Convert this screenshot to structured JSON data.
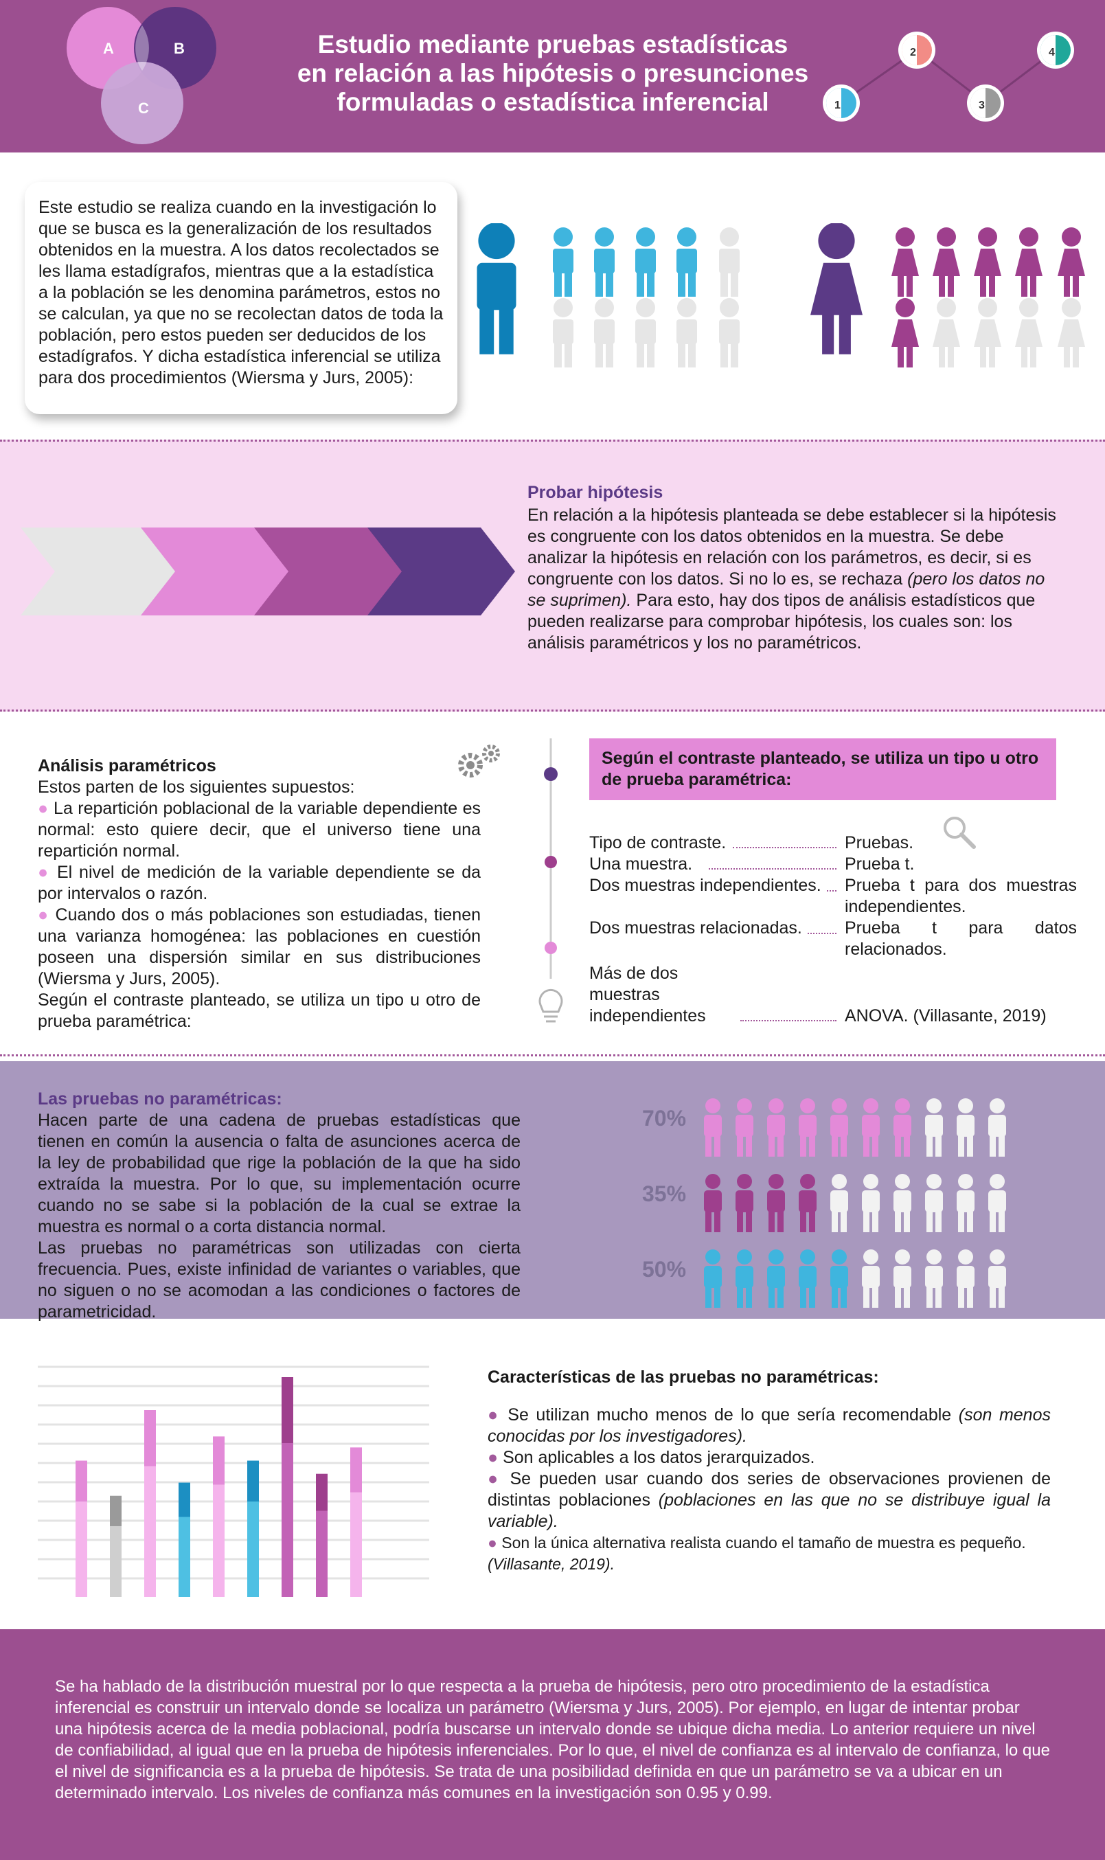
{
  "header": {
    "title_line1": "Estudio mediante pruebas estadísticas",
    "title_line2": "en relación a las hipótesis o presunciones",
    "title_line3": "formuladas o estadística inferencial",
    "venn_labels": [
      "A",
      "B",
      "C"
    ],
    "step_numbers": [
      "1",
      "2",
      "3",
      "4"
    ]
  },
  "intro": {
    "text": "Este estudio se realiza cuando en la investigación lo que se busca es la generalización de los resultados obtenidos en la muestra. A los datos recolectados se les llama estadígrafos, mientras que a la estadística a la población se les denomina parámetros, estos no se calculan, ya que no se recolectan datos de toda la población, pero estos pueden ser deducidos de los estadígrafos. Y dicha estadística inferencial se utiliza para dos procedimientos (Wiersma y Jurs, 2005):"
  },
  "probar": {
    "title": "Probar hipótesis",
    "text_a": "En relación a la hipótesis planteada se debe establecer si la hipótesis es congruente con los datos obtenidos en la muestra. Se debe analizar la hipótesis en relación con los parámetros, es decir, si es congruente con los datos. Si no lo es, se rechaza ",
    "text_italic": "(pero los datos no se suprimen).",
    "text_b": " Para esto, hay dos tipos de análisis estadísticos que pueden realizarse para comprobar hipótesis, los cuales son: los análisis paramétricos y los no paramétricos."
  },
  "parametricos": {
    "title": "Análisis paramétricos",
    "intro": "Estos parten de los siguientes supuestos:",
    "bullets": [
      "La repartición poblacional de la variable dependiente es normal: esto quiere decir, que el universo tiene una repartición normal.",
      "El nivel de medición de la variable dependiente se da por intervalos o razón.",
      "Cuando dos o más poblaciones son estudiadas, tienen una varianza homogénea: las poblaciones en cuestión poseen una dispersión similar en sus distribuciones (Wiersma y Jurs, 2005)."
    ],
    "closing": "Según el contraste planteado, se utiliza un tipo u otro de prueba paramétrica:"
  },
  "contraste": {
    "heading": "Según el contraste planteado, se utiliza un tipo u otro de prueba paramétrica:",
    "col1_header": "Tipo de contraste.",
    "col2_header": "Pruebas.",
    "rows": [
      {
        "tipo": "Una muestra.",
        "prueba": "Prueba t."
      },
      {
        "tipo": "Dos muestras independientes.",
        "prueba": "Prueba t para dos muestras independientes."
      },
      {
        "tipo": "Dos muestras relacionadas.",
        "prueba": "Prueba t para datos relacionados."
      },
      {
        "tipo": "Más de dos muestras independientes",
        "prueba": "ANOVA. (Villasante, 2019)"
      }
    ]
  },
  "no_parametricas": {
    "title": "Las pruebas no paramétricas:",
    "text": "Hacen parte de una cadena de pruebas estadísticas que tienen en común la ausencia o falta de asunciones acerca de la ley de probabilidad que rige la población de la que ha sido extraída la muestra. Por lo que, su implementación ocurre cuando no se sabe si la población de la cual se extrae la muestra es normal o a corta distancia normal.",
    "text2": "Las pruebas no paramétricas son utilizadas con cierta frecuencia. Pues, existe infinidad de variantes o variables, que no siguen o no se acomodan a las condiciones o factores de parametricidad.",
    "percent_rows": [
      {
        "label": "70%",
        "value": 0.7,
        "color": "#e38ad8"
      },
      {
        "label": "35%",
        "value": 0.35,
        "color": "#9e3f8d"
      },
      {
        "label": "50%",
        "value": 0.5,
        "color": "#3fb5de"
      }
    ]
  },
  "caracteristicas": {
    "title": "Características de las pruebas no paramétricas:",
    "b1": "Se utilizan mucho menos de lo que sería recomendable ",
    "b1_i": "(son menos conocidas por los investigadores).",
    "b2": "Son aplicables a los datos jerarquizados.",
    "b3": "Se pueden usar cuando dos series de observaciones provienen de distintas poblaciones ",
    "b3_i": "(poblaciones en las que no se distribuye igual la variable).",
    "b4": "Son la única alternativa realista cuando el tamaño de muestra es pequeño.",
    "b4_i": "(Villasante, 2019)."
  },
  "footer": {
    "text": "Se ha hablado de la distribución muestral por lo que respecta a la prueba de hipótesis, pero otro procedimiento de la estadística inferencial es construir un intervalo donde se localiza un parámetro (Wiersma y Jurs, 2005). Por ejemplo, en lugar de intentar probar una hipótesis acerca de la media poblacional, podría buscarse un intervalo donde se ubique dicha media. Lo anterior requiere un nivel de confiabilidad, al igual que en la prueba de hipótesis inferenciales. Por lo que, el nivel de confianza es al intervalo de confianza, lo que el nivel de significancia es a la prueba de hipótesis. Se trata de una posibilidad definida en que un parámetro se va a ubicar en un determinado intervalo. Los niveles de confianza más comunes en la investigación son 0.95 y 0.99."
  },
  "colors": {
    "header_purple": "#9c4f90",
    "dark_purple": "#5b3a86",
    "pink": "#e38ad8",
    "blue": "#3fb5de",
    "grey_person": "#e6e6e6"
  }
}
